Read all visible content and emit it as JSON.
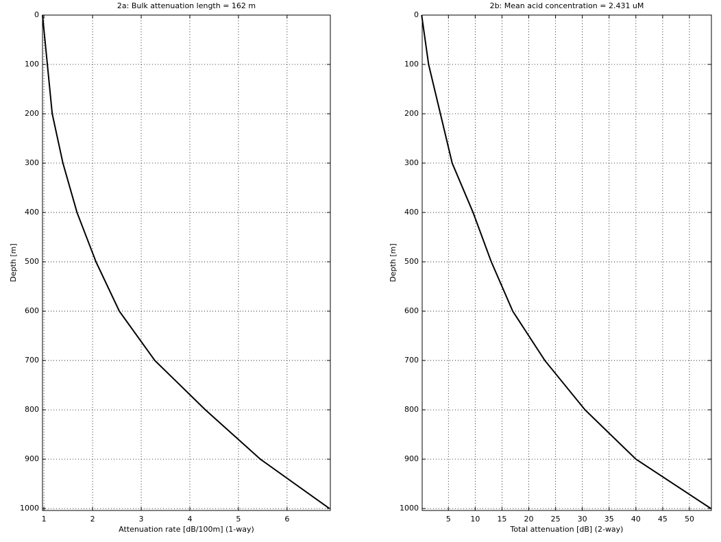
{
  "chart_data": [
    {
      "type": "line",
      "title": "2a: Bulk attenuation length =  162 m",
      "x_label": "Attenuation rate [dB/100m] (1-way)",
      "y_label": "Depth [m]",
      "x": [
        0.97,
        1.07,
        1.17,
        1.39,
        1.68,
        2.07,
        2.55,
        3.28,
        4.32,
        5.45,
        6.87
      ],
      "values": [
        0,
        100,
        200,
        300,
        400,
        500,
        600,
        700,
        800,
        900,
        1000
      ],
      "color": "#000000",
      "xlim": [
        0.97,
        6.89
      ],
      "xticks": [
        1,
        2,
        3,
        4,
        5,
        6
      ],
      "ylim": [
        0,
        1004
      ],
      "yticks": [
        0,
        100,
        200,
        300,
        400,
        500,
        600,
        700,
        800,
        900,
        1000
      ],
      "y_reversed": true,
      "grid": true
    },
    {
      "type": "line",
      "title": "2b: Mean acid concentration = 2.431 uM",
      "x_label": "Total attenuation [dB] (2-way)",
      "y_label": "Depth [m]",
      "x": [
        0,
        1.3,
        3.5,
        5.7,
        9.6,
        13,
        17,
        23,
        30.5,
        40,
        54
      ],
      "values": [
        0,
        100,
        200,
        300,
        400,
        500,
        600,
        700,
        800,
        900,
        1000
      ],
      "color": "#000000",
      "xlim": [
        0.1,
        54.1
      ],
      "xticks": [
        5,
        10,
        15,
        20,
        25,
        30,
        35,
        40,
        45,
        50
      ],
      "ylim": [
        0,
        1004
      ],
      "yticks": [
        0,
        100,
        200,
        300,
        400,
        500,
        600,
        700,
        800,
        900,
        1000
      ],
      "y_reversed": true,
      "grid": true
    }
  ]
}
